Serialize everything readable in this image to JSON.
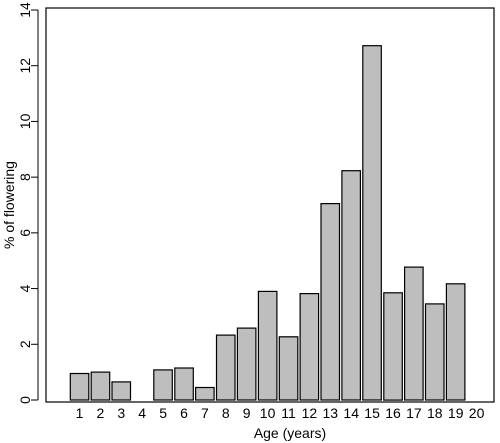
{
  "chart_data": {
    "type": "bar",
    "xlabel": "Age (years)",
    "ylabel": "% of flowering",
    "ylim": [
      0,
      14
    ],
    "yticks": [
      "0",
      "2",
      "4",
      "6",
      "8",
      "10",
      "12",
      "14"
    ],
    "categories": [
      "1",
      "2",
      "3",
      "4",
      "5",
      "6",
      "7",
      "8",
      "9",
      "10",
      "11",
      "12",
      "13",
      "14",
      "15",
      "16",
      "17",
      "18",
      "19",
      "20"
    ],
    "values": [
      0.95,
      1.0,
      0.65,
      0,
      1.08,
      1.15,
      0.45,
      2.33,
      2.58,
      3.9,
      2.27,
      3.82,
      7.05,
      8.23,
      12.72,
      3.85,
      4.77,
      3.45,
      4.17,
      0
    ],
    "bar_color": "#bebebe",
    "grid": false
  }
}
